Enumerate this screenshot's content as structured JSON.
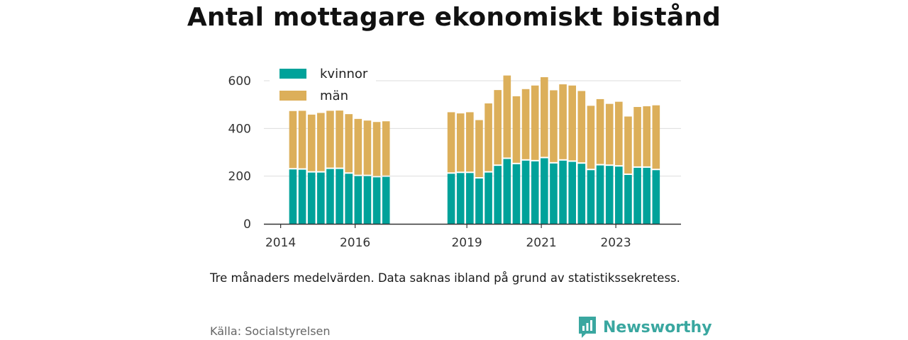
{
  "title": "Antal mottagare ekonomiskt bistånd",
  "note": "Tre månaders medelvärden. Data saknas ibland på grund av statistikssekretess.",
  "source": "Källa: Socialstyrelsen",
  "brand": {
    "name": "Newsworthy",
    "icon": "newsworthy-logo-icon",
    "color": "#3aa7a0"
  },
  "chart_data": {
    "type": "bar",
    "stacked": true,
    "xlim_year": [
      2013.55,
      2024.75
    ],
    "ylim": [
      0,
      700
    ],
    "yticks": [
      0,
      200,
      400,
      600
    ],
    "xticks": [
      {
        "label": "2014",
        "year": 2014
      },
      {
        "label": "2016",
        "year": 2016
      },
      {
        "label": "2019",
        "year": 2019
      },
      {
        "label": "2021",
        "year": 2021
      },
      {
        "label": "2023",
        "year": 2023
      }
    ],
    "grid": true,
    "legend_position": "top-left",
    "colors": {
      "kvinnor": "#00a29a",
      "man": "#dcaf5a",
      "axis": "#333333",
      "grid": "#dddddd"
    },
    "series": [
      {
        "name": "kvinnor",
        "key": "kvinnor"
      },
      {
        "name": "män",
        "key": "man"
      }
    ],
    "points": [
      {
        "period": "2014 Q2",
        "year": 2014.33,
        "kvinnor": 228,
        "man": 245
      },
      {
        "period": "2014 Q3",
        "year": 2014.58,
        "kvinnor": 227,
        "man": 247
      },
      {
        "period": "2014 Q4",
        "year": 2014.83,
        "kvinnor": 215,
        "man": 243
      },
      {
        "period": "2015 Q1",
        "year": 2015.08,
        "kvinnor": 215,
        "man": 250
      },
      {
        "period": "2015 Q2",
        "year": 2015.33,
        "kvinnor": 230,
        "man": 244
      },
      {
        "period": "2015 Q3",
        "year": 2015.58,
        "kvinnor": 230,
        "man": 245
      },
      {
        "period": "2015 Q4",
        "year": 2015.83,
        "kvinnor": 210,
        "man": 250
      },
      {
        "period": "2016 Q1",
        "year": 2016.08,
        "kvinnor": 200,
        "man": 240
      },
      {
        "period": "2016 Q2",
        "year": 2016.33,
        "kvinnor": 200,
        "man": 233
      },
      {
        "period": "2016 Q3",
        "year": 2016.58,
        "kvinnor": 195,
        "man": 232
      },
      {
        "period": "2016 Q4",
        "year": 2016.83,
        "kvinnor": 197,
        "man": 233
      },
      {
        "period": "2018 Q3",
        "year": 2018.58,
        "kvinnor": 210,
        "man": 258
      },
      {
        "period": "2018 Q4",
        "year": 2018.83,
        "kvinnor": 213,
        "man": 250
      },
      {
        "period": "2019 Q1",
        "year": 2019.08,
        "kvinnor": 213,
        "man": 255
      },
      {
        "period": "2019 Q2",
        "year": 2019.33,
        "kvinnor": 190,
        "man": 245
      },
      {
        "period": "2019 Q3",
        "year": 2019.58,
        "kvinnor": 215,
        "man": 290
      },
      {
        "period": "2019 Q4",
        "year": 2019.83,
        "kvinnor": 243,
        "man": 318
      },
      {
        "period": "2020 Q1",
        "year": 2020.08,
        "kvinnor": 272,
        "man": 350
      },
      {
        "period": "2020 Q2",
        "year": 2020.33,
        "kvinnor": 250,
        "man": 285
      },
      {
        "period": "2020 Q3",
        "year": 2020.58,
        "kvinnor": 265,
        "man": 300
      },
      {
        "period": "2020 Q4",
        "year": 2020.83,
        "kvinnor": 262,
        "man": 318
      },
      {
        "period": "2021 Q1",
        "year": 2021.08,
        "kvinnor": 275,
        "man": 340
      },
      {
        "period": "2021 Q2",
        "year": 2021.33,
        "kvinnor": 253,
        "man": 307
      },
      {
        "period": "2021 Q3",
        "year": 2021.58,
        "kvinnor": 265,
        "man": 320
      },
      {
        "period": "2021 Q4",
        "year": 2021.83,
        "kvinnor": 260,
        "man": 320
      },
      {
        "period": "2022 Q1",
        "year": 2022.08,
        "kvinnor": 252,
        "man": 305
      },
      {
        "period": "2022 Q2",
        "year": 2022.33,
        "kvinnor": 225,
        "man": 270
      },
      {
        "period": "2022 Q3",
        "year": 2022.58,
        "kvinnor": 245,
        "man": 278
      },
      {
        "period": "2022 Q4",
        "year": 2022.83,
        "kvinnor": 243,
        "man": 260
      },
      {
        "period": "2023 Q1",
        "year": 2023.08,
        "kvinnor": 240,
        "man": 272
      },
      {
        "period": "2023 Q2",
        "year": 2023.33,
        "kvinnor": 205,
        "man": 245
      },
      {
        "period": "2023 Q3",
        "year": 2023.58,
        "kvinnor": 235,
        "man": 255
      },
      {
        "period": "2023 Q4",
        "year": 2023.83,
        "kvinnor": 235,
        "man": 258
      },
      {
        "period": "2024 Q1",
        "year": 2024.08,
        "kvinnor": 225,
        "man": 272
      }
    ]
  }
}
